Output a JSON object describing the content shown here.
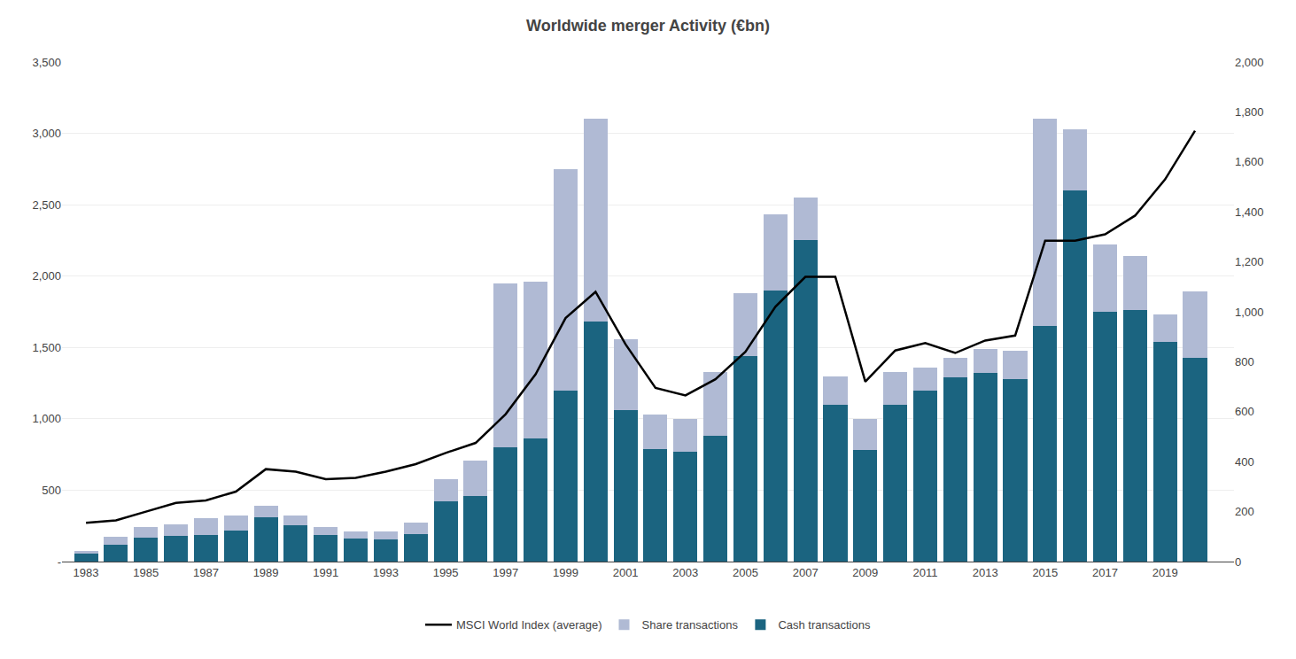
{
  "chart_data": {
    "type": "bar",
    "title": "Worldwide merger Activity (€bn)",
    "x": [
      1983,
      1984,
      1985,
      1986,
      1987,
      1988,
      1989,
      1990,
      1991,
      1992,
      1993,
      1994,
      1995,
      1996,
      1997,
      1998,
      1999,
      2000,
      2001,
      2002,
      2003,
      2004,
      2005,
      2006,
      2007,
      2008,
      2009,
      2010,
      2011,
      2012,
      2013,
      2014,
      2015,
      2016,
      2017,
      2018,
      2019,
      2020
    ],
    "series": [
      {
        "name": "Cash transactions",
        "color": "#1b6480",
        "values": [
          55,
          120,
          165,
          180,
          185,
          215,
          310,
          255,
          185,
          160,
          155,
          195,
          420,
          460,
          800,
          860,
          1200,
          1680,
          1060,
          790,
          770,
          880,
          1440,
          1900,
          2250,
          1100,
          780,
          1100,
          1200,
          1290,
          1320,
          1280,
          1650,
          2600,
          1750,
          1760,
          1540,
          1430
        ]
      },
      {
        "name": "Share transactions",
        "color": "#b0bad4",
        "values": [
          20,
          55,
          75,
          80,
          120,
          110,
          80,
          70,
          55,
          50,
          55,
          80,
          160,
          250,
          1150,
          1100,
          1550,
          1420,
          500,
          240,
          230,
          450,
          440,
          530,
          300,
          200,
          220,
          230,
          160,
          140,
          170,
          200,
          1450,
          430,
          470,
          380,
          190,
          460
        ]
      },
      {
        "name": "MSCI World Index (average)",
        "color": "#000000",
        "type": "line",
        "axis": "y2",
        "values": [
          155,
          165,
          200,
          235,
          245,
          280,
          370,
          360,
          330,
          335,
          360,
          390,
          435,
          475,
          590,
          750,
          975,
          1080,
          870,
          695,
          665,
          730,
          840,
          1020,
          1140,
          1140,
          720,
          845,
          875,
          835,
          885,
          905,
          1285,
          1285,
          1310,
          1385,
          1530,
          1725
        ]
      }
    ],
    "stacked": true,
    "xlim": [
      1982.2,
      2021.3
    ],
    "xticks": [
      1983,
      1985,
      1987,
      1989,
      1991,
      1993,
      1995,
      1997,
      1999,
      2001,
      2003,
      2005,
      2007,
      2009,
      2011,
      2013,
      2015,
      2017,
      2019
    ],
    "ylim": [
      0,
      3500
    ],
    "yticks": [
      {
        "value": 0,
        "label": "-"
      },
      500,
      {
        "value": 1000,
        "label": "1,000"
      },
      {
        "value": 1500,
        "label": "1,500"
      },
      {
        "value": 2000,
        "label": "2,000"
      },
      {
        "value": 2500,
        "label": "2,500"
      },
      {
        "value": 3000,
        "label": "3,000"
      },
      {
        "value": 3500,
        "label": "3,500"
      }
    ],
    "y2lim": [
      0,
      2000
    ],
    "y2ticks": [
      0,
      200,
      400,
      600,
      800,
      {
        "value": 1000,
        "label": "1,000"
      },
      {
        "value": 1200,
        "label": "1,200"
      },
      {
        "value": 1400,
        "label": "1,400"
      },
      {
        "value": 1600,
        "label": "1,600"
      },
      {
        "value": 1800,
        "label": "1,800"
      },
      {
        "value": 2000,
        "label": "2,000"
      }
    ],
    "grid": true,
    "legend": "bottom"
  }
}
